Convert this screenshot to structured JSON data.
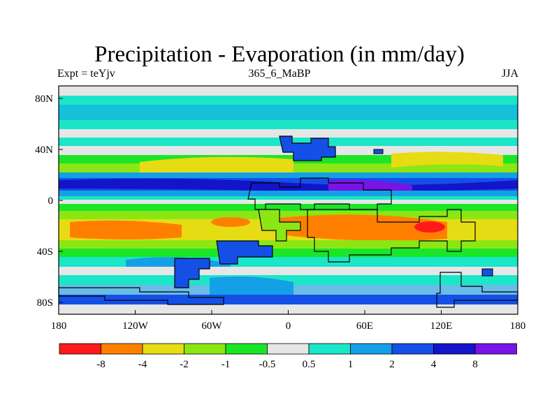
{
  "title": "Precipitation - Evaporation (in mm/day)",
  "subtitle_left": "Expt = teYjv",
  "subtitle_center": "365_6_MaBP",
  "subtitle_right": "JJA",
  "x_ticks": [
    "180",
    "120W",
    "60W",
    "0",
    "60E",
    "120E",
    "180"
  ],
  "y_ticks": [
    "80N",
    "40N",
    "0",
    "40S",
    "80S"
  ],
  "colorbar": {
    "colors": [
      "#ff1a1a",
      "#ff8000",
      "#e6dc14",
      "#8ce614",
      "#1ae628",
      "#e6e6e6",
      "#1ae6c8",
      "#14a0e6",
      "#1450e6",
      "#1414c8",
      "#7814e6"
    ],
    "labels": [
      "-8",
      "-4",
      "-2",
      "-1",
      "-0.5",
      "0.5",
      "1",
      "2",
      "4",
      "8"
    ]
  }
}
